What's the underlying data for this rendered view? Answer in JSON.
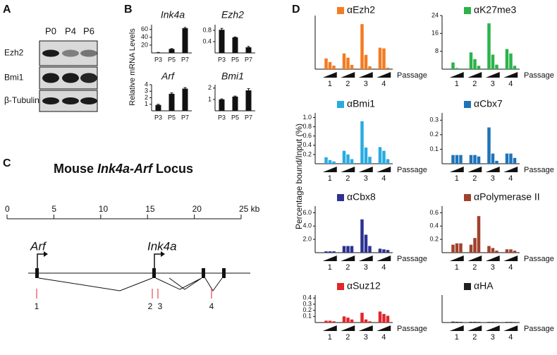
{
  "figure": {
    "panel_labels": [
      "A",
      "B",
      "C",
      "D"
    ],
    "b_ylabel": "Relative mRNA Levels",
    "d_ylabel": "Percentage bound/Input (%)"
  },
  "blot": {
    "lanes": [
      "P0",
      "P4",
      "P6"
    ],
    "rows": [
      "Ezh2",
      "Bmi1",
      "β-Tubulin"
    ]
  },
  "locus": {
    "title": [
      "Mouse ",
      "Ink4a-Arf",
      " Locus"
    ],
    "scale_lim": [
      0,
      25
    ],
    "scale_ticks": [
      0,
      5,
      10,
      15,
      20,
      {
        "value": 25,
        "label": "25 kb"
      }
    ],
    "genes": [
      "Arf",
      "Ink4a"
    ],
    "sites": [
      "1",
      "2",
      "3",
      "4"
    ]
  },
  "chart_data": [
    {
      "type": "bar",
      "title": "Ink4a",
      "categories": [
        "P3",
        "P5",
        "P7"
      ],
      "values": [
        1,
        10,
        63
      ],
      "errors": [
        0.3,
        1,
        2
      ],
      "color": "#111111",
      "ylim": [
        0,
        72
      ],
      "yticks": [
        20,
        40,
        60
      ]
    },
    {
      "type": "bar",
      "title": "Ezh2",
      "categories": [
        "P3",
        "P5",
        "P7"
      ],
      "values": [
        0.82,
        0.55,
        0.2
      ],
      "errors": [
        0.05,
        0.02,
        0.03
      ],
      "color": "#111111",
      "ylim": [
        0,
        1
      ],
      "yticks": [
        0.4,
        0.8
      ]
    },
    {
      "type": "bar",
      "title": "Arf",
      "categories": [
        "P3",
        "P5",
        "P7"
      ],
      "values": [
        0.9,
        2.6,
        3.4
      ],
      "errors": [
        0.1,
        0.15,
        0.15
      ],
      "color": "#111111",
      "ylim": [
        0,
        4
      ],
      "yticks": [
        1,
        2,
        3,
        4
      ]
    },
    {
      "type": "bar",
      "title": "Bmi1",
      "categories": [
        "P3",
        "P5",
        "P7"
      ],
      "values": [
        1,
        1.25,
        1.8
      ],
      "errors": [
        0.05,
        0.05,
        0.15
      ],
      "color": "#111111",
      "ylim": [
        0,
        2.3
      ],
      "yticks": [
        1,
        2
      ]
    },
    {
      "type": "grouped_bar",
      "title": "αEzh2",
      "xlabel": "Passage",
      "categories": [
        "1",
        "2",
        "3",
        "4"
      ],
      "values": [
        [
          1.5,
          1.0,
          0.5
        ],
        [
          2.2,
          1.6,
          0.6
        ],
        [
          6.3,
          2.0,
          0.4
        ],
        [
          3.0,
          2.9,
          0.2
        ]
      ],
      "color": "#f47b20",
      "ylim": [
        0,
        7.5
      ]
    },
    {
      "type": "grouped_bar",
      "title": "αK27me3",
      "xlabel": "Passage",
      "categories": [
        "1",
        "2",
        "3",
        "4"
      ],
      "values": [
        [
          3.0,
          0.5,
          0.3
        ],
        [
          7.5,
          4.5,
          1.5
        ],
        [
          20.5,
          6.5,
          2.0
        ],
        [
          9.0,
          7.0,
          1.5
        ]
      ],
      "color": "#2bb34a",
      "ylim": [
        0,
        24
      ],
      "yticks": [
        8,
        16,
        24
      ]
    },
    {
      "type": "grouped_bar",
      "title": "αBmi1",
      "xlabel": "Passage",
      "categories": [
        "1",
        "2",
        "3",
        "4"
      ],
      "values": [
        [
          0.14,
          0.08,
          0.05
        ],
        [
          0.28,
          0.2,
          0.1
        ],
        [
          0.92,
          0.35,
          0.15
        ],
        [
          0.36,
          0.28,
          0.1
        ]
      ],
      "color": "#29abe2",
      "ylim": [
        0,
        1.1
      ],
      "yticks": [
        0.2,
        0.4,
        0.6,
        0.8,
        {
          "value": 1,
          "label": "1.0"
        }
      ]
    },
    {
      "type": "grouped_bar",
      "title": "αCbx7",
      "xlabel": "Passage",
      "categories": [
        "1",
        "2",
        "3",
        "4"
      ],
      "values": [
        [
          0.06,
          0.06,
          0.06
        ],
        [
          0.06,
          0.06,
          0.05
        ],
        [
          0.25,
          0.07,
          0.02
        ],
        [
          0.07,
          0.07,
          0.04
        ]
      ],
      "color": "#1f73b7",
      "ylim": [
        0,
        0.35
      ],
      "yticks": [
        0.1,
        0.2,
        0.3
      ]
    },
    {
      "type": "grouped_bar",
      "title": "αCbx8",
      "xlabel": "Passage",
      "categories": [
        "1",
        "2",
        "3",
        "4"
      ],
      "values": [
        [
          0.2,
          0.2,
          0.2
        ],
        [
          1.0,
          1.0,
          1.0
        ],
        [
          5.0,
          2.7,
          1.0
        ],
        [
          0.6,
          0.5,
          0.4
        ]
      ],
      "color": "#2e3192",
      "ylim": [
        0,
        7
      ],
      "yticks": [
        {
          "value": 2,
          "label": "2.0"
        },
        {
          "value": 4,
          "label": "4.0"
        },
        {
          "value": 6,
          "label": "6.0"
        }
      ]
    },
    {
      "type": "grouped_bar",
      "title": "αPolymerase II",
      "xlabel": "Passage",
      "categories": [
        "1",
        "2",
        "3",
        "4"
      ],
      "values": [
        [
          0.12,
          0.14,
          0.14
        ],
        [
          0.12,
          0.22,
          0.55
        ],
        [
          0.1,
          0.07,
          0.03
        ],
        [
          0.05,
          0.05,
          0.03
        ]
      ],
      "color": "#a0412d",
      "ylim": [
        0,
        0.7
      ],
      "yticks": [
        0.2,
        0.4,
        0.6
      ]
    },
    {
      "type": "grouped_bar",
      "title": "αSuz12",
      "xlabel": "Passage",
      "categories": [
        "1",
        "2",
        "3",
        "4"
      ],
      "values": [
        [
          0.03,
          0.03,
          0.02
        ],
        [
          0.1,
          0.08,
          0.05
        ],
        [
          0.16,
          0.05,
          0.02
        ],
        [
          0.18,
          0.14,
          0.11
        ]
      ],
      "color": "#e2262a",
      "ylim": [
        0,
        0.45
      ],
      "yticks": [
        0.1,
        0.2,
        0.3,
        0.4
      ]
    },
    {
      "type": "grouped_bar",
      "title": "αHA",
      "xlabel": "Passage",
      "categories": [
        "1",
        "2",
        "3",
        "4"
      ],
      "values": [
        [
          0.015,
          0.012,
          0.01
        ],
        [
          0.012,
          0.012,
          0.01
        ],
        [
          0.01,
          0.01,
          0.008
        ],
        [
          0.01,
          0.01,
          0.008
        ]
      ],
      "color": "#231f20",
      "ylim": [
        0,
        0.45
      ]
    }
  ]
}
